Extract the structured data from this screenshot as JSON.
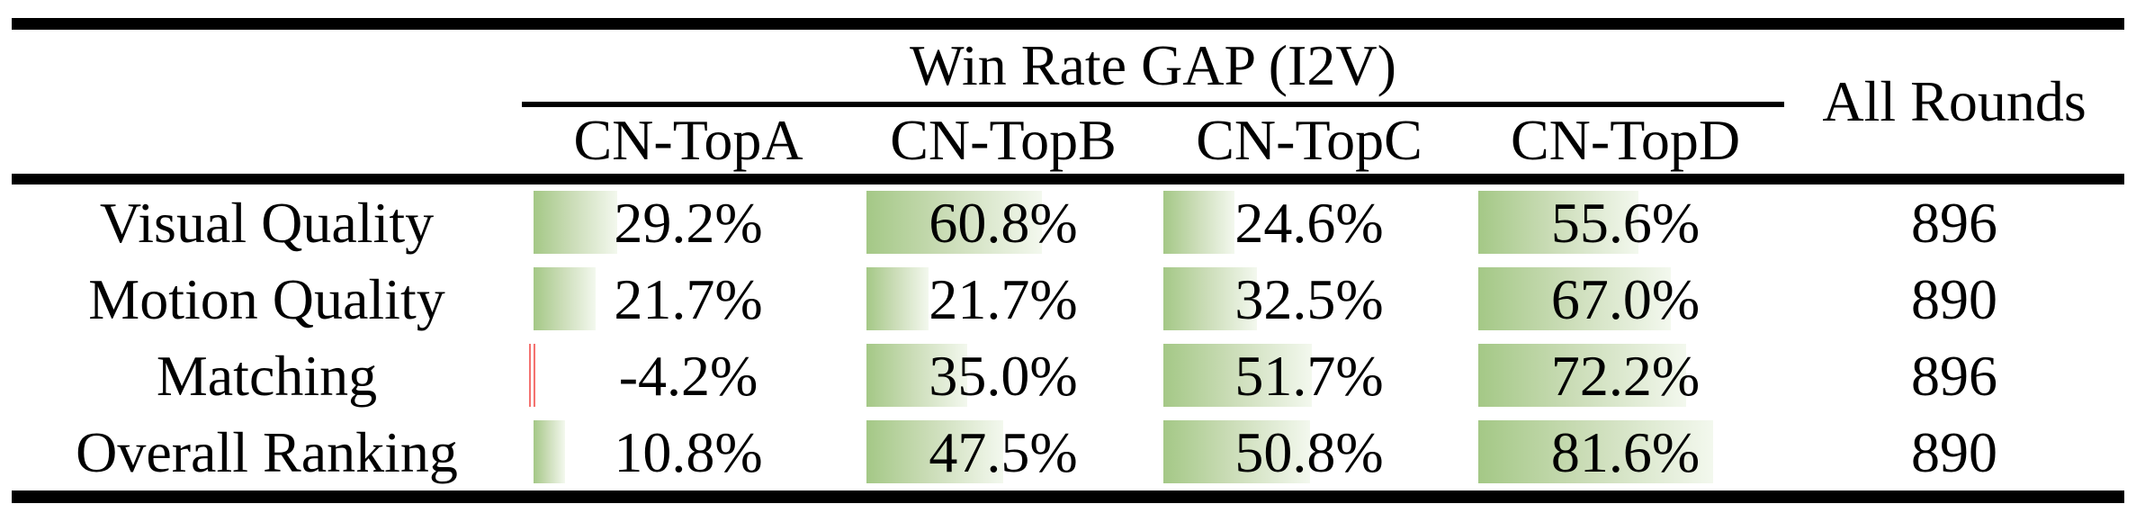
{
  "table": {
    "group_header": "Win Rate GAP (I2V)",
    "all_rounds_header": "All Rounds",
    "columns": [
      "CN-TopA",
      "CN-TopB",
      "CN-TopC",
      "CN-TopD"
    ],
    "rows": [
      {
        "label": "Visual Quality",
        "values": [
          29.2,
          60.8,
          24.6,
          55.6
        ],
        "display": [
          "29.2%",
          "60.8%",
          "24.6%",
          "55.6%"
        ],
        "rounds": "896"
      },
      {
        "label": "Motion Quality",
        "values": [
          21.7,
          21.7,
          32.5,
          67.0
        ],
        "display": [
          "21.7%",
          "21.7%",
          "32.5%",
          "67.0%"
        ],
        "rounds": "890"
      },
      {
        "label": "Matching",
        "values": [
          -4.2,
          35.0,
          51.7,
          72.2
        ],
        "display": [
          "-4.2%",
          "35.0%",
          "51.7%",
          "72.2%"
        ],
        "rounds": "896"
      },
      {
        "label": "Overall Ranking",
        "values": [
          10.8,
          47.5,
          50.8,
          81.6
        ],
        "display": [
          "10.8%",
          "47.5%",
          "50.8%",
          "81.6%"
        ],
        "rounds": "890"
      }
    ],
    "colors": {
      "bar_green": "#a4c886",
      "bar_green_fade": "#f3f8ee",
      "bar_negative": "#f4726f",
      "rule_color": "#000000"
    }
  }
}
